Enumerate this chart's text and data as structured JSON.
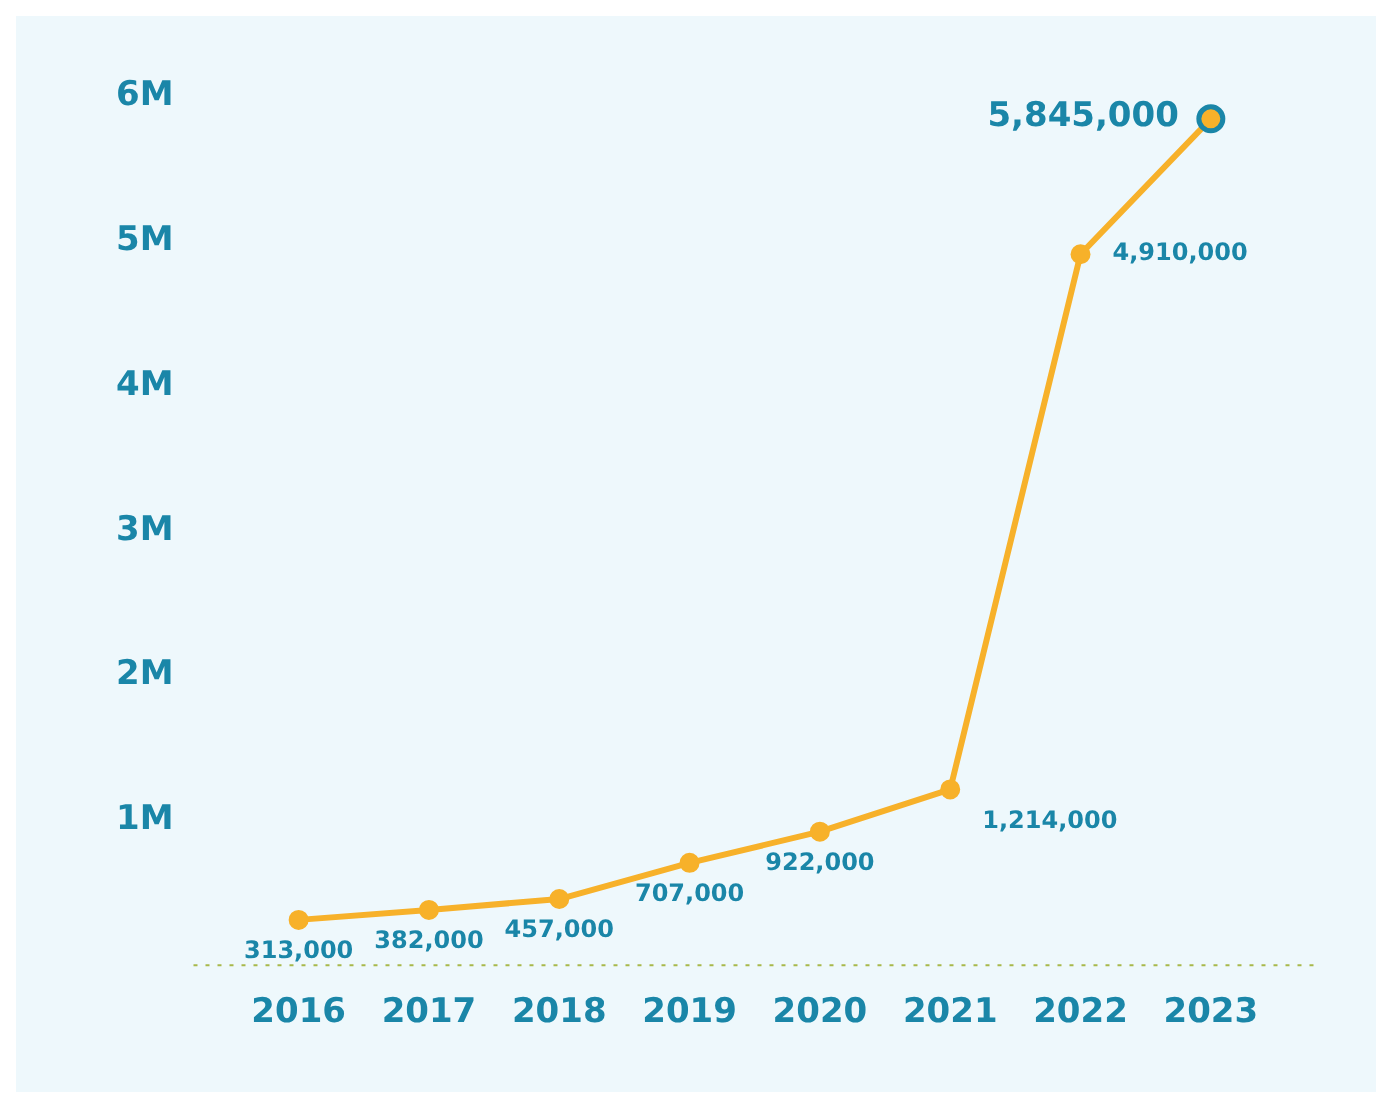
{
  "chart_data": {
    "type": "line",
    "categories": [
      "2016",
      "2017",
      "2018",
      "2019",
      "2020",
      "2021",
      "2022",
      "2023"
    ],
    "series": [
      {
        "color": "#f7b12a",
        "values": [
          313000,
          382000,
          457000,
          707000,
          922000,
          1214000,
          4910000,
          5845000
        ],
        "value_labels": [
          "313,000",
          "382,000",
          "457,000",
          "707,000",
          "922,000",
          "1,214,000",
          "4,910,000",
          "5,845,000"
        ]
      }
    ],
    "ylim": [
      0,
      6000000
    ],
    "yticks": [
      {
        "value": 0,
        "label": null
      },
      {
        "value": 1000000,
        "label": "1M"
      },
      {
        "value": 2000000,
        "label": "2M"
      },
      {
        "value": 3000000,
        "label": "3M"
      },
      {
        "value": 4000000,
        "label": "4M"
      },
      {
        "value": 5000000,
        "label": "5M"
      },
      {
        "value": 6000000,
        "label": "6M"
      }
    ],
    "ref_lines": [
      {
        "axis": "y",
        "value": 0,
        "color": "#a8b84a",
        "line_style": "dotted"
      }
    ],
    "grid": false,
    "legend": false,
    "marker": "circle",
    "line_style": "solid"
  }
}
